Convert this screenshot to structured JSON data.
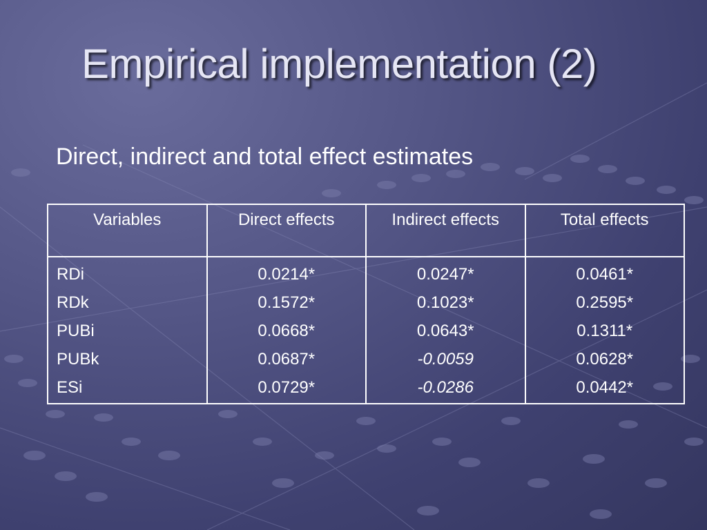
{
  "slide": {
    "title": "Empirical implementation (2)",
    "subtitle": "Direct, indirect and total effect estimates"
  },
  "table": {
    "headers": [
      "Variables",
      "Direct effects",
      "Indirect effects",
      "Total effects"
    ],
    "rows": [
      {
        "variable": "RDi",
        "direct": "0.0214*",
        "indirect": "0.0247*",
        "total": "0.0461*"
      },
      {
        "variable": "RDk",
        "direct": "0.1572*",
        "indirect": "0.1023*",
        "total": "0.2595*"
      },
      {
        "variable": "PUBi",
        "direct": "0.0668*",
        "indirect": "0.0643*",
        "total": "0.1311*"
      },
      {
        "variable": "PUBk",
        "direct": "0.0687*",
        "indirect": "-0.0059",
        "total": "0.0628*"
      },
      {
        "variable": "ESi",
        "direct": "0.0729*",
        "indirect": "-0.0286",
        "total": "0.0442*"
      }
    ],
    "italic_cells": [
      "indirect:3",
      "indirect:4"
    ]
  },
  "colors": {
    "background": "#4b4d7d",
    "text": "#ffffff",
    "title": "#e6e6f4"
  }
}
